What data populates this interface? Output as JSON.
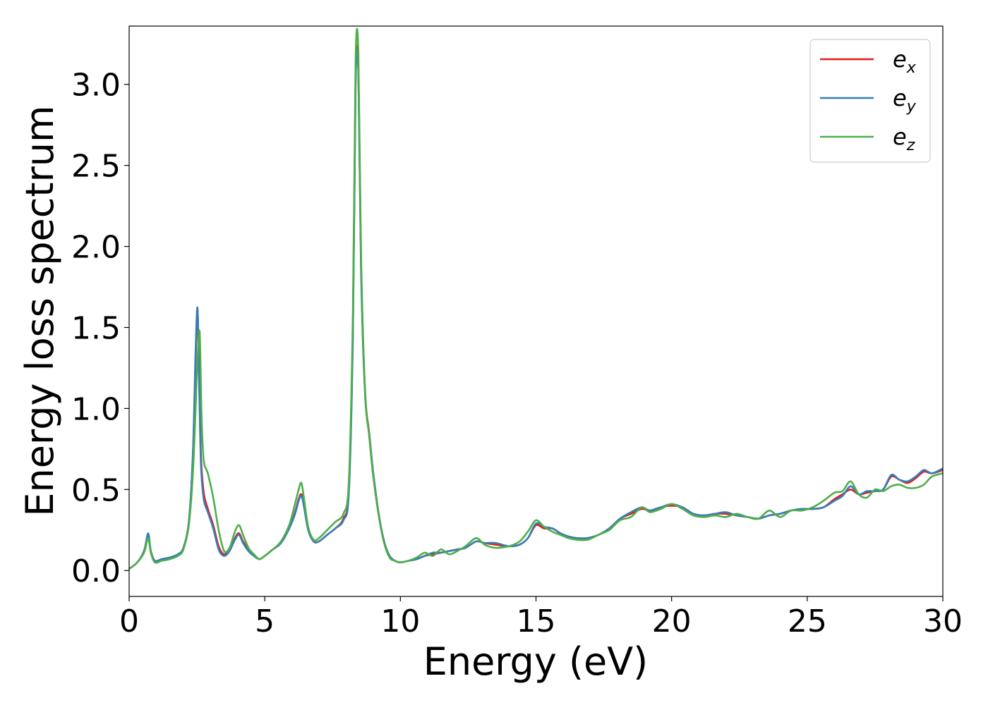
{
  "chart_data": {
    "type": "line",
    "xlabel": "Energy (eV)",
    "ylabel": "Energy loss spectrum",
    "xlim": [
      0,
      30
    ],
    "ylim": [
      -0.16,
      3.36
    ],
    "xticks": [
      "0",
      "5",
      "10",
      "15",
      "20",
      "25",
      "30"
    ],
    "xtick_values": [
      0,
      5,
      10,
      15,
      20,
      25,
      30
    ],
    "yticks": [
      "0.0",
      "0.5",
      "1.0",
      "1.5",
      "2.0",
      "2.5",
      "3.0"
    ],
    "ytick_values": [
      0,
      0.5,
      1.0,
      1.5,
      2.0,
      2.5,
      3.0
    ],
    "grid": false,
    "legend_position": "top-right",
    "series": [
      {
        "name": "e_x",
        "base": "e",
        "sub": "x",
        "color": "#e41a1c",
        "x": [
          0,
          0.3,
          0.55,
          0.7,
          0.8,
          0.95,
          1.2,
          1.5,
          1.8,
          2.0,
          2.2,
          2.35,
          2.45,
          2.52,
          2.58,
          2.65,
          2.75,
          2.9,
          3.1,
          3.3,
          3.5,
          3.7,
          3.9,
          4.05,
          4.2,
          4.4,
          4.6,
          4.8,
          5.0,
          5.3,
          5.6,
          5.9,
          6.1,
          6.25,
          6.35,
          6.45,
          6.6,
          6.8,
          7.0,
          7.3,
          7.6,
          7.9,
          8.1,
          8.25,
          8.35,
          8.45,
          8.55,
          8.7,
          8.85,
          9.0,
          9.2,
          9.4,
          9.6,
          9.8,
          10.0,
          10.3,
          10.6,
          10.9,
          11.2,
          11.5,
          11.8,
          12.1,
          12.4,
          12.8,
          13.1,
          13.5,
          14.0,
          14.4,
          14.7,
          15.0,
          15.3,
          15.6,
          15.9,
          16.2,
          16.5,
          16.9,
          17.3,
          17.7,
          18.1,
          18.5,
          18.9,
          19.2,
          19.6,
          20.0,
          20.4,
          20.8,
          21.2,
          21.6,
          22.0,
          22.4,
          22.8,
          23.2,
          23.6,
          24.0,
          24.4,
          24.8,
          25.2,
          25.6,
          26.0,
          26.3,
          26.6,
          26.9,
          27.2,
          27.5,
          27.8,
          28.1,
          28.4,
          28.7,
          29.0,
          29.3,
          29.6,
          30.0
        ],
        "y": [
          0.01,
          0.05,
          0.12,
          0.22,
          0.12,
          0.06,
          0.07,
          0.08,
          0.1,
          0.14,
          0.3,
          0.7,
          1.3,
          1.6,
          1.2,
          0.7,
          0.48,
          0.38,
          0.28,
          0.15,
          0.1,
          0.13,
          0.2,
          0.23,
          0.18,
          0.13,
          0.09,
          0.07,
          0.09,
          0.13,
          0.17,
          0.26,
          0.35,
          0.44,
          0.47,
          0.4,
          0.26,
          0.18,
          0.18,
          0.22,
          0.26,
          0.32,
          0.5,
          1.5,
          3.05,
          3.1,
          1.9,
          1.1,
          0.85,
          0.6,
          0.35,
          0.18,
          0.09,
          0.06,
          0.05,
          0.06,
          0.07,
          0.09,
          0.1,
          0.11,
          0.12,
          0.13,
          0.14,
          0.18,
          0.17,
          0.16,
          0.15,
          0.16,
          0.2,
          0.28,
          0.26,
          0.26,
          0.23,
          0.21,
          0.2,
          0.2,
          0.22,
          0.26,
          0.32,
          0.35,
          0.38,
          0.37,
          0.39,
          0.4,
          0.39,
          0.35,
          0.34,
          0.35,
          0.35,
          0.34,
          0.33,
          0.32,
          0.34,
          0.35,
          0.37,
          0.38,
          0.38,
          0.39,
          0.44,
          0.47,
          0.5,
          0.47,
          0.48,
          0.49,
          0.5,
          0.58,
          0.56,
          0.54,
          0.57,
          0.61,
          0.6,
          0.62
        ]
      },
      {
        "name": "e_y",
        "base": "e",
        "sub": "y",
        "color": "#377eb8",
        "x": [
          0,
          0.3,
          0.55,
          0.7,
          0.8,
          0.95,
          1.2,
          1.5,
          1.8,
          2.0,
          2.2,
          2.35,
          2.45,
          2.52,
          2.58,
          2.65,
          2.75,
          2.9,
          3.1,
          3.3,
          3.5,
          3.7,
          3.9,
          4.05,
          4.2,
          4.4,
          4.6,
          4.8,
          5.0,
          5.3,
          5.6,
          5.9,
          6.1,
          6.25,
          6.35,
          6.45,
          6.6,
          6.8,
          7.0,
          7.3,
          7.6,
          7.9,
          8.1,
          8.25,
          8.35,
          8.45,
          8.55,
          8.7,
          8.85,
          9.0,
          9.2,
          9.4,
          9.6,
          9.8,
          10.0,
          10.3,
          10.6,
          10.9,
          11.2,
          11.5,
          11.8,
          12.1,
          12.4,
          12.8,
          13.1,
          13.5,
          14.0,
          14.4,
          14.7,
          15.0,
          15.3,
          15.6,
          15.9,
          16.2,
          16.5,
          16.9,
          17.3,
          17.7,
          18.1,
          18.5,
          18.9,
          19.2,
          19.6,
          20.0,
          20.4,
          20.8,
          21.2,
          21.6,
          22.0,
          22.4,
          22.8,
          23.2,
          23.6,
          24.0,
          24.4,
          24.8,
          25.2,
          25.6,
          26.0,
          26.3,
          26.6,
          26.9,
          27.2,
          27.5,
          27.8,
          28.1,
          28.4,
          28.7,
          29.0,
          29.3,
          29.6,
          30.0
        ],
        "y": [
          0.01,
          0.05,
          0.12,
          0.23,
          0.12,
          0.06,
          0.07,
          0.08,
          0.1,
          0.14,
          0.3,
          0.72,
          1.35,
          1.62,
          1.15,
          0.65,
          0.44,
          0.36,
          0.26,
          0.13,
          0.09,
          0.12,
          0.19,
          0.22,
          0.17,
          0.12,
          0.09,
          0.07,
          0.09,
          0.13,
          0.17,
          0.26,
          0.34,
          0.43,
          0.46,
          0.39,
          0.25,
          0.18,
          0.18,
          0.22,
          0.26,
          0.31,
          0.48,
          1.45,
          3.0,
          3.08,
          1.85,
          1.08,
          0.84,
          0.6,
          0.35,
          0.18,
          0.09,
          0.06,
          0.05,
          0.06,
          0.07,
          0.09,
          0.11,
          0.11,
          0.12,
          0.13,
          0.14,
          0.18,
          0.17,
          0.17,
          0.15,
          0.16,
          0.2,
          0.29,
          0.27,
          0.26,
          0.23,
          0.21,
          0.2,
          0.2,
          0.22,
          0.26,
          0.32,
          0.36,
          0.39,
          0.37,
          0.39,
          0.41,
          0.39,
          0.35,
          0.34,
          0.35,
          0.36,
          0.34,
          0.33,
          0.32,
          0.34,
          0.35,
          0.37,
          0.38,
          0.38,
          0.39,
          0.43,
          0.46,
          0.52,
          0.47,
          0.49,
          0.49,
          0.5,
          0.59,
          0.56,
          0.55,
          0.58,
          0.62,
          0.6,
          0.63
        ]
      },
      {
        "name": "e_z",
        "base": "e",
        "sub": "z",
        "color": "#4daf4a",
        "x": [
          0,
          0.3,
          0.55,
          0.7,
          0.8,
          0.95,
          1.2,
          1.5,
          1.8,
          2.0,
          2.2,
          2.35,
          2.45,
          2.52,
          2.6,
          2.67,
          2.75,
          2.9,
          3.1,
          3.3,
          3.5,
          3.7,
          3.9,
          4.05,
          4.2,
          4.4,
          4.6,
          4.8,
          5.0,
          5.3,
          5.6,
          5.9,
          6.1,
          6.25,
          6.35,
          6.45,
          6.6,
          6.8,
          7.0,
          7.3,
          7.6,
          7.9,
          8.1,
          8.25,
          8.35,
          8.45,
          8.55,
          8.7,
          8.85,
          9.0,
          9.2,
          9.4,
          9.6,
          9.8,
          10.0,
          10.3,
          10.6,
          10.9,
          11.2,
          11.5,
          11.8,
          12.1,
          12.4,
          12.8,
          13.1,
          13.5,
          14.0,
          14.4,
          14.7,
          15.0,
          15.3,
          15.6,
          15.9,
          16.2,
          16.5,
          16.9,
          17.3,
          17.7,
          18.1,
          18.5,
          18.9,
          19.2,
          19.6,
          20.0,
          20.4,
          20.8,
          21.2,
          21.6,
          22.0,
          22.4,
          22.8,
          23.2,
          23.6,
          24.0,
          24.4,
          24.8,
          25.2,
          25.6,
          26.0,
          26.3,
          26.6,
          26.9,
          27.2,
          27.5,
          27.8,
          28.1,
          28.4,
          28.7,
          29.0,
          29.3,
          29.6,
          30.0
        ],
        "y": [
          0.01,
          0.05,
          0.11,
          0.2,
          0.11,
          0.05,
          0.06,
          0.07,
          0.09,
          0.13,
          0.28,
          0.6,
          1.0,
          1.3,
          1.47,
          0.95,
          0.68,
          0.6,
          0.45,
          0.25,
          0.12,
          0.14,
          0.24,
          0.28,
          0.22,
          0.14,
          0.1,
          0.07,
          0.09,
          0.13,
          0.18,
          0.28,
          0.4,
          0.5,
          0.54,
          0.44,
          0.27,
          0.19,
          0.2,
          0.25,
          0.3,
          0.35,
          0.55,
          1.6,
          3.15,
          3.2,
          1.95,
          1.1,
          0.83,
          0.58,
          0.34,
          0.17,
          0.08,
          0.06,
          0.05,
          0.06,
          0.08,
          0.11,
          0.09,
          0.13,
          0.1,
          0.12,
          0.15,
          0.2,
          0.16,
          0.14,
          0.15,
          0.18,
          0.24,
          0.31,
          0.27,
          0.24,
          0.22,
          0.2,
          0.19,
          0.19,
          0.22,
          0.25,
          0.31,
          0.33,
          0.39,
          0.36,
          0.38,
          0.41,
          0.38,
          0.34,
          0.33,
          0.34,
          0.33,
          0.35,
          0.33,
          0.32,
          0.37,
          0.33,
          0.37,
          0.37,
          0.39,
          0.43,
          0.48,
          0.49,
          0.55,
          0.47,
          0.45,
          0.5,
          0.49,
          0.52,
          0.53,
          0.51,
          0.51,
          0.53,
          0.58,
          0.6
        ]
      }
    ]
  }
}
